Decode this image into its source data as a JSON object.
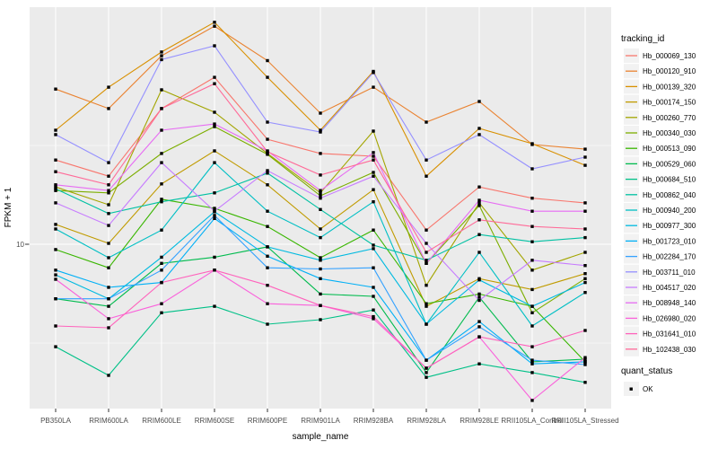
{
  "chart_data": {
    "type": "line",
    "title": "",
    "xlabel": "sample_name",
    "ylabel": "FPKM + 1",
    "y_scale": "log10",
    "y_tick_label": "10",
    "y_ticks": [
      10
    ],
    "grid": true,
    "panel_bg": "#ebebeb",
    "grid_color": "#ffffff",
    "marker_color": "#000000",
    "legend_title": "tracking_id",
    "quant_legend": {
      "title": "quant_status",
      "items": [
        "OK"
      ]
    },
    "x_categories": [
      "PB350LA",
      "RRIM600LA",
      "RRIM600LE",
      "RRIM600SE",
      "RRIM600PE",
      "RRIM901LA",
      "RRIM928BA",
      "RRIM928LA",
      "RRIM928LE",
      "RRII105LA_Control",
      "RRII105LA_Stressed"
    ],
    "series": [
      {
        "name": "Hb_000069_130",
        "color": "#F8766D",
        "values": [
          26.7,
          22.1,
          48.6,
          70,
          34,
          28.8,
          27.9,
          11.8,
          19.5,
          17.1,
          16.2
        ]
      },
      {
        "name": "Hb_000120_910",
        "color": "#EA8331",
        "values": [
          61,
          48.6,
          90,
          127,
          85,
          46.1,
          62.4,
          41.5,
          52.8,
          32,
          30.3
        ]
      },
      {
        "name": "Hb_000139_320",
        "color": "#D89000",
        "values": [
          37.8,
          62.4,
          94,
          133,
          70,
          37.8,
          75,
          22.1,
          38.6,
          32.3,
          25.1
        ]
      },
      {
        "name": "Hb_000174_150",
        "color": "#C09B00",
        "values": [
          12.6,
          10.1,
          20.2,
          29.7,
          20,
          11.95,
          18.9,
          4.85,
          6.7,
          5.9,
          7.1
        ]
      },
      {
        "name": "Hb_000260_770",
        "color": "#A3A500",
        "values": [
          19.5,
          15.85,
          60.5,
          46.6,
          28.8,
          18.2,
          37.4,
          6.2,
          16.2,
          7.4,
          9.1
        ]
      },
      {
        "name": "Hb_000340_030",
        "color": "#7CAE00",
        "values": [
          18.7,
          18.2,
          28.8,
          39.4,
          28.5,
          17.6,
          23.1,
          8.0,
          15.7,
          4.5,
          6.7
        ]
      },
      {
        "name": "Hb_000513_090",
        "color": "#39B600",
        "values": [
          9.4,
          7.6,
          16.9,
          15.2,
          12.3,
          8.55,
          11.8,
          5.0,
          5.6,
          4.85,
          2.54
        ]
      },
      {
        "name": "Hb_000529_060",
        "color": "#00BB4E",
        "values": [
          5.3,
          4.85,
          8.0,
          8.6,
          9.7,
          5.6,
          5.45,
          2.24,
          5.4,
          2.54,
          2.62
        ]
      },
      {
        "name": "Hb_000684_510",
        "color": "#00C087",
        "values": [
          3.03,
          2.17,
          4.5,
          4.85,
          3.94,
          4.15,
          4.65,
          2.12,
          2.48,
          2.24,
          2.0
        ]
      },
      {
        "name": "Hb_000862_040",
        "color": "#00C1A3",
        "values": [
          19.1,
          14.3,
          16.4,
          18.2,
          22.9,
          15.0,
          9.9,
          8.3,
          11.2,
          10.3,
          10.8
        ]
      },
      {
        "name": "Hb_000940_200",
        "color": "#00BFC4",
        "values": [
          11.95,
          8.55,
          11.8,
          25.9,
          14.7,
          10.8,
          16.4,
          3.94,
          9.1,
          3.86,
          5.7
        ]
      },
      {
        "name": "Hb_000977_300",
        "color": "#00BAE0",
        "values": [
          7.0,
          5.3,
          8.6,
          14.6,
          9.7,
          8.3,
          9.5,
          3.94,
          6.6,
          4.85,
          6.4
        ]
      },
      {
        "name": "Hb_001723_010",
        "color": "#00B0F6",
        "values": [
          7.4,
          6.05,
          6.4,
          13.5,
          8.7,
          6.7,
          6.05,
          2.59,
          4.06,
          2.48,
          2.54
        ]
      },
      {
        "name": "Hb_002284_170",
        "color": "#35A2FF",
        "values": [
          5.3,
          5.3,
          7.4,
          14.0,
          7.6,
          7.5,
          7.6,
          2.59,
          3.82,
          2.59,
          2.46
        ]
      },
      {
        "name": "Hb_003711_010",
        "color": "#9590FF",
        "values": [
          35.9,
          25.9,
          86,
          101,
          41.5,
          37.0,
          74,
          26.7,
          35.9,
          24.1,
          27.6
        ]
      },
      {
        "name": "Hb_004517_020",
        "color": "#C77CFF",
        "values": [
          16.2,
          12.45,
          25.9,
          14.7,
          23.6,
          17.1,
          22.1,
          10.1,
          5.2,
          8.3,
          7.8
        ]
      },
      {
        "name": "Hb_008948_140",
        "color": "#E76BF3",
        "values": [
          20,
          18.7,
          37.8,
          40.6,
          29.7,
          18.7,
          29.1,
          8.0,
          16.7,
          14.7,
          14.7
        ]
      },
      {
        "name": "Hb_026980_020",
        "color": "#FA62DB",
        "values": [
          6.65,
          4.2,
          5.0,
          7.4,
          5.0,
          4.9,
          4.2,
          2.36,
          3.4,
          1.62,
          2.67
        ]
      },
      {
        "name": "Hb_031641_010",
        "color": "#FF62BC",
        "values": [
          3.86,
          3.78,
          6.4,
          7.4,
          6.2,
          4.9,
          4.3,
          2.36,
          3.4,
          3.03,
          3.66
        ]
      },
      {
        "name": "Hb_102438_030",
        "color": "#FF6A98",
        "values": [
          23.3,
          20,
          48.6,
          65,
          29.4,
          22.4,
          26.7,
          9.1,
          13.3,
          12.3,
          11.95
        ]
      }
    ]
  }
}
